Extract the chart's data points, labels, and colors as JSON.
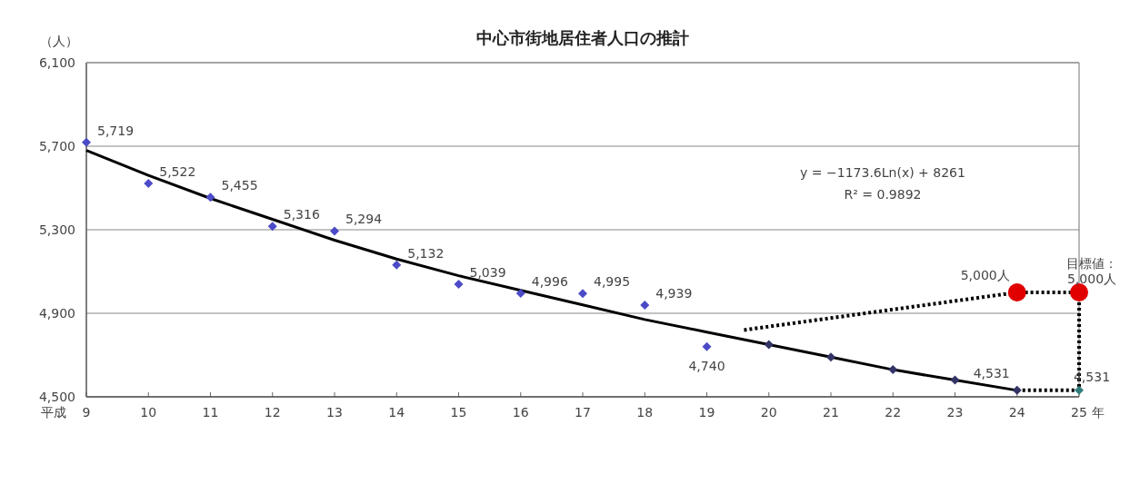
{
  "chart_data": {
    "type": "scatter",
    "title": "中心市街地居住者人口の推計",
    "ylabel": "（人）",
    "annotations": [
      "平成",
      "年",
      "y = −1173.6Ln(x) + 8261",
      "R² = 0.9892"
    ],
    "xlim": [
      9,
      25
    ],
    "xticks": [
      9,
      10,
      11,
      12,
      13,
      14,
      15,
      16,
      17,
      18,
      19,
      20,
      21,
      22,
      23,
      24,
      25
    ],
    "ylim": [
      4500,
      6100
    ],
    "yticks": [
      {
        "value": 4500,
        "label": "4,500"
      },
      {
        "value": 4900,
        "label": "4,900"
      },
      {
        "value": 5300,
        "label": "5,300"
      },
      {
        "value": 5700,
        "label": "5,700"
      },
      {
        "value": 6100,
        "label": "6,100"
      }
    ],
    "grid": "y",
    "series": [
      {
        "type": "scatter",
        "marker": "diamond",
        "color": "#4b4bc8",
        "x": [
          9,
          10,
          11,
          12,
          13,
          14,
          15,
          16,
          17,
          18,
          19
        ],
        "values": [
          5719,
          5522,
          5455,
          5316,
          5294,
          5132,
          5039,
          4996,
          4995,
          4939,
          4740
        ],
        "value_labels": [
          "5,719",
          "5,522",
          "5,455",
          "5,316",
          "5,294",
          "5,132",
          "5,039",
          "4,996",
          "4,995",
          "4,939",
          "4,740"
        ]
      },
      {
        "type": "line",
        "marker": "none",
        "line_style": "solid",
        "color": "#000000",
        "x": [
          9,
          10,
          11,
          12,
          13,
          14,
          15,
          16,
          17,
          18,
          19,
          20,
          21,
          22,
          23,
          24
        ],
        "values": [
          5680,
          5560,
          5450,
          5350,
          5250,
          5160,
          5080,
          5010,
          4940,
          4870,
          4810,
          4750,
          4690,
          4630,
          4580,
          4531
        ]
      },
      {
        "type": "scatter",
        "marker": "diamond",
        "color": "#333366",
        "x": [
          20,
          21,
          22,
          23,
          24
        ],
        "values": [
          4750,
          4690,
          4630,
          4580,
          4531
        ],
        "value_labels": [
          null,
          null,
          null,
          null,
          "4,531"
        ]
      },
      {
        "type": "line",
        "marker": "none",
        "line_style": "dotted",
        "color": "#000000",
        "x": [
          19.6,
          24,
          25
        ],
        "values": [
          4820,
          5000,
          5000
        ]
      },
      {
        "type": "line",
        "marker": "none",
        "line_style": "dotted",
        "color": "#000000",
        "x": [
          24,
          25,
          25
        ],
        "values": [
          4531,
          4531,
          5000
        ]
      },
      {
        "type": "scatter",
        "marker": "circle",
        "color": "#e00000",
        "x": [
          24,
          25
        ],
        "values": [
          5000,
          5000
        ],
        "value_labels": [
          "5,000人",
          "目標値：5,000人"
        ]
      },
      {
        "type": "scatter",
        "marker": "diamond",
        "color": "#2e7d7d",
        "x": [
          25
        ],
        "values": [
          4531
        ],
        "value_labels": [
          "4,531"
        ]
      }
    ]
  }
}
